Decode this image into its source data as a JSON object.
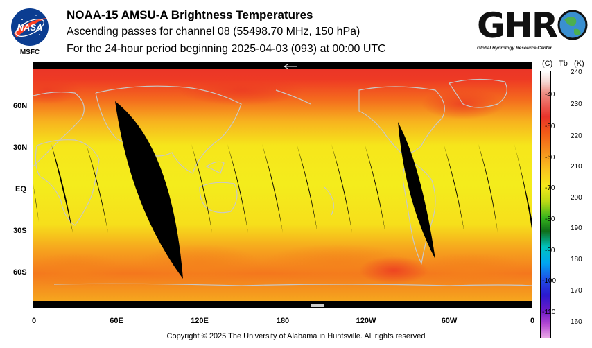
{
  "header": {
    "title": "NOAA-15 AMSU-A Brightness Temperatures",
    "subtitle1": "Ascending passes for channel 08 (55498.70 MHz, 150 hPa)",
    "subtitle2": "For the 24-hour period beginning 2025-04-03 (093) at 00:00 UTC"
  },
  "logos": {
    "nasa_text": "NASA",
    "nasa_caption": "MSFC",
    "ghrc_text": "GHRC",
    "ghrc_tagline": "Global Hydrology Resource Center"
  },
  "map": {
    "lat_labels": [
      "60N",
      "30N",
      "EQ",
      "30S",
      "60S"
    ],
    "lon_labels": [
      "0",
      "60E",
      "120E",
      "180",
      "120W",
      "60W",
      "0"
    ],
    "lat_values": [
      60,
      30,
      0,
      -30,
      -60
    ],
    "lon_values": [
      0,
      60,
      120,
      180,
      240,
      300,
      360
    ]
  },
  "colorbar": {
    "head_c": "(C)",
    "head_tb": "Tb",
    "head_k": "(K)",
    "celsius_ticks": [
      "-40",
      "-50",
      "-60",
      "-70",
      "-80",
      "-90",
      "-100",
      "-110"
    ],
    "kelvin_ticks": [
      "240",
      "230",
      "220",
      "210",
      "200",
      "190",
      "180",
      "170",
      "160"
    ],
    "range_k": [
      157,
      240
    ]
  },
  "colors": {
    "hot": "#e8332a",
    "warm": "#f58f1d",
    "mid": "#f6e91a",
    "gap": "#000000",
    "coast": "#c8c8c8"
  },
  "footer": {
    "copyright": "Copyright © 2025 The University of Alabama in Huntsville.  All rights reserved"
  }
}
